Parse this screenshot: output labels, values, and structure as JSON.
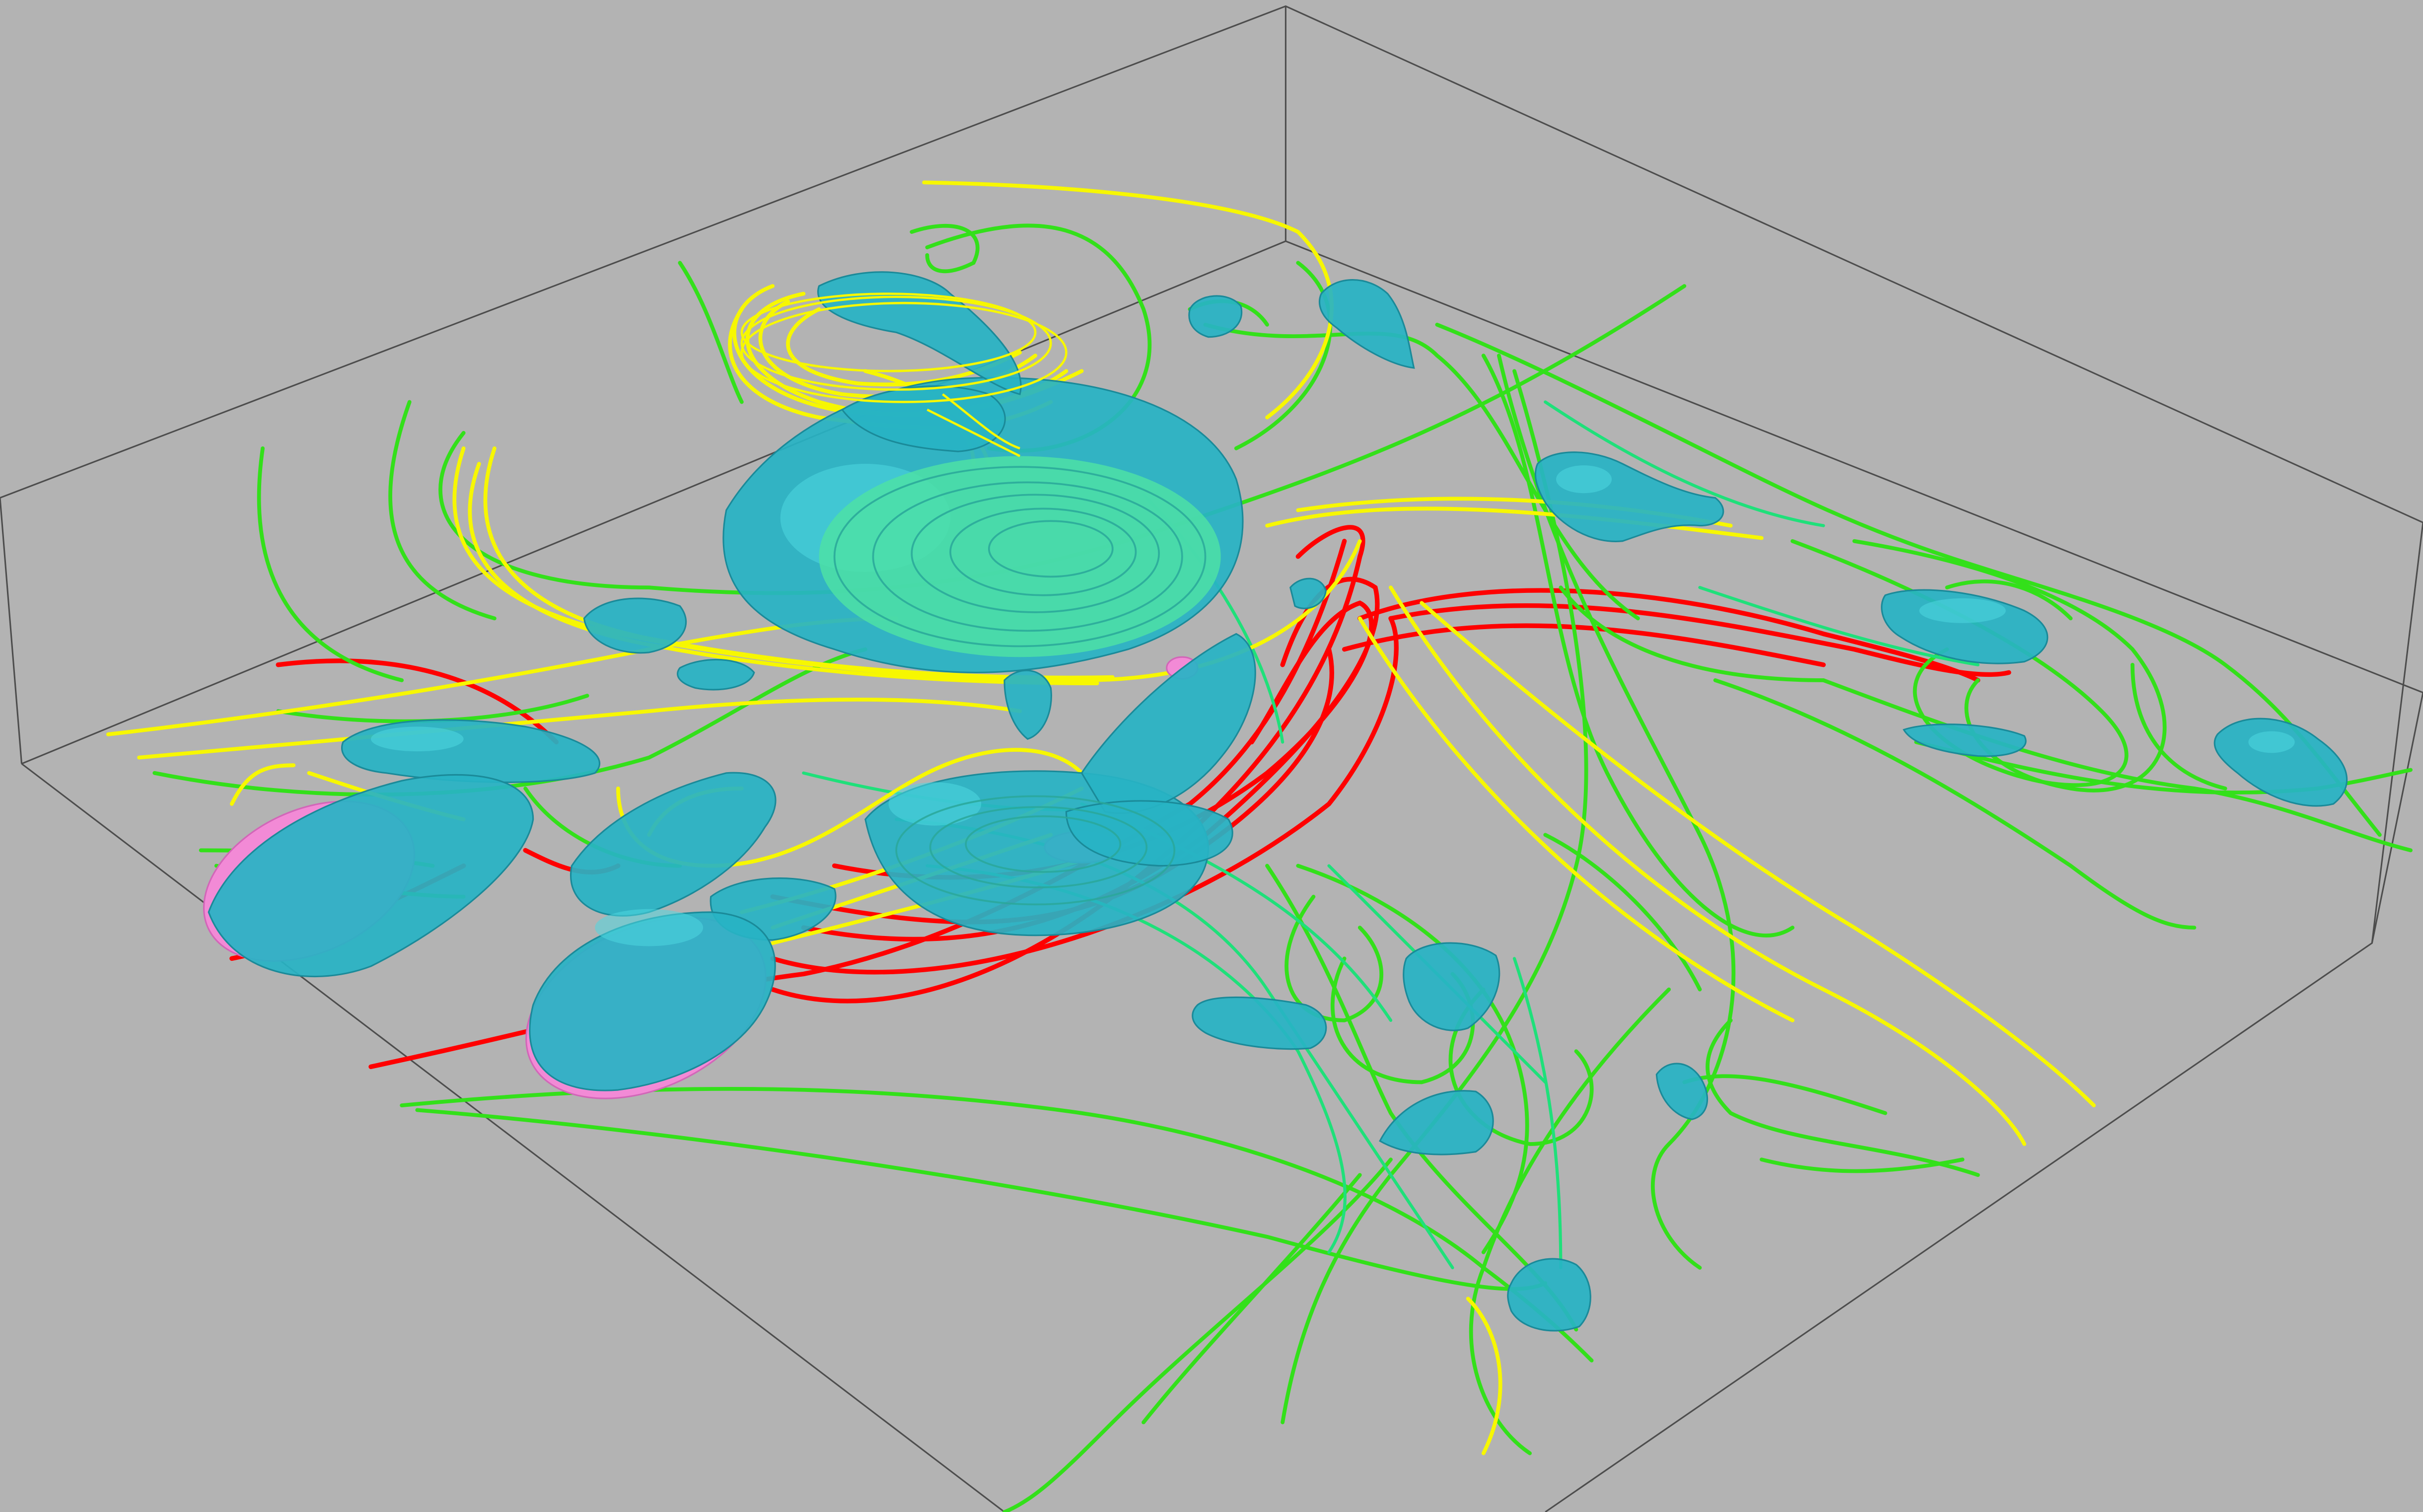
{
  "scene": {
    "background": "#b3b3b3",
    "box_edge_color": "#4d4d4d",
    "colors": {
      "blob": "#27b3c4",
      "blob_highlight": "#4fd7e0",
      "vortex_core": "#4de0a6",
      "blob_pink": "#f28ad6",
      "streamline_red": "#ff0000",
      "streamline_yellow": "#f7f700",
      "streamline_green": "#33e01a",
      "streamline_teal_green": "#1fe07a"
    },
    "legend": []
  }
}
